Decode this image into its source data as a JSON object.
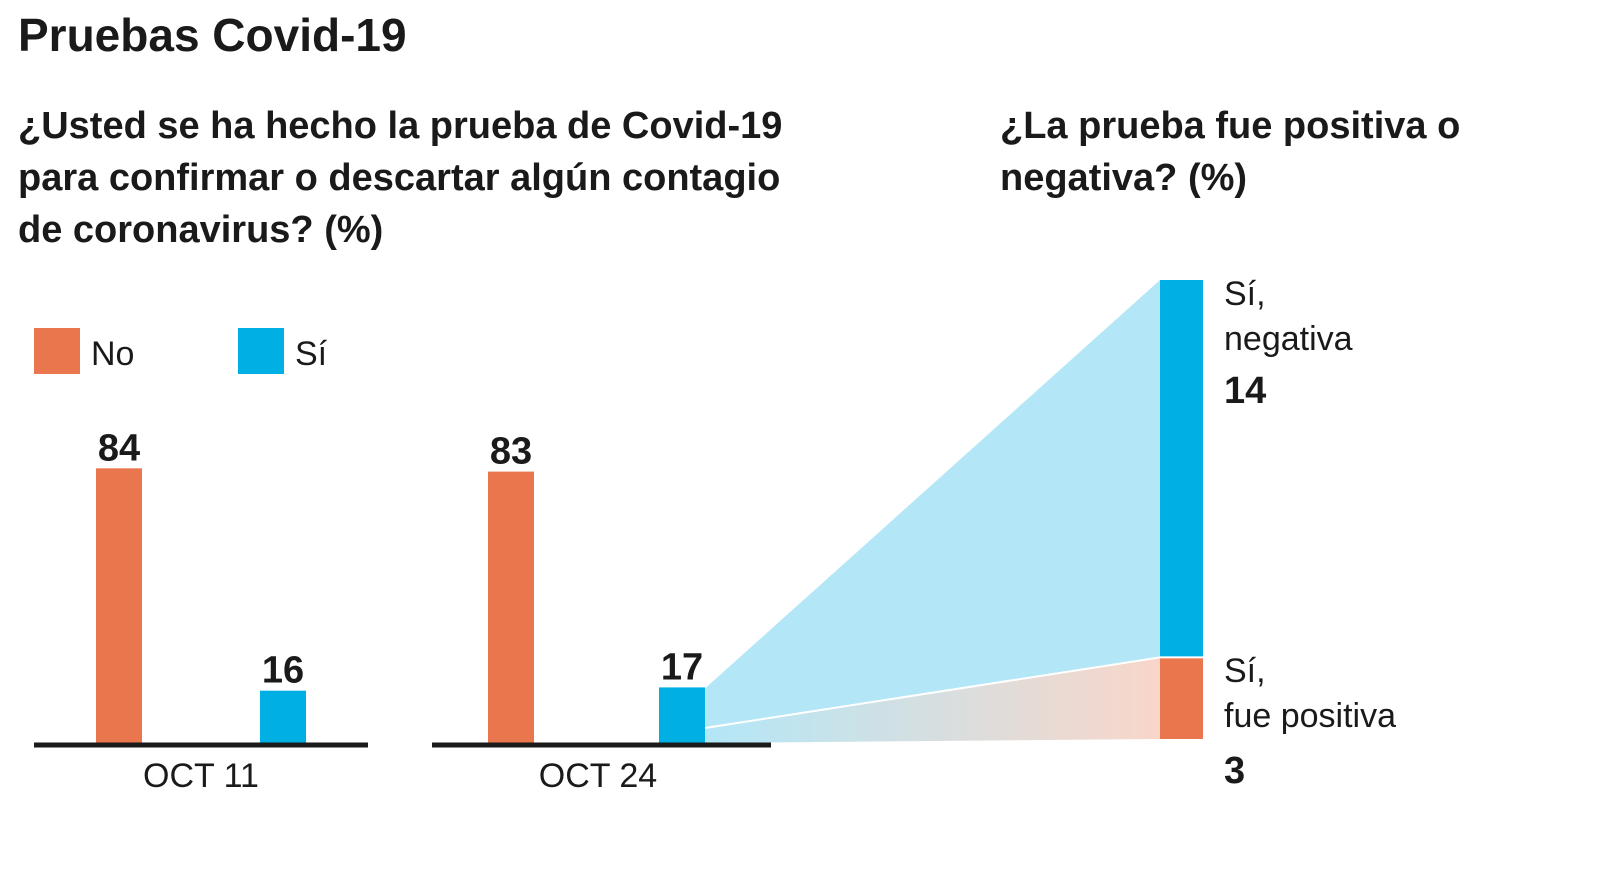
{
  "header": {
    "title": "Pruebas Covid-19",
    "question_left": "¿Usted se ha hecho la prueba de Covid-19 para confirmar o descartar algún contagio de coronavirus? (%)",
    "question_right": "¿La prueba fue positiva o negativa? (%)"
  },
  "colors": {
    "no": "#ea764e",
    "si": "#00b0e4",
    "wedge_light_blue": "#b3e7f7",
    "wedge_light_orange": "#f9d6c9",
    "axis": "#1a1a1a"
  },
  "chart_data": [
    {
      "type": "bar",
      "categories": [
        "OCT 11",
        "OCT 24"
      ],
      "series": [
        {
          "name": "No",
          "values": [
            84,
            83
          ]
        },
        {
          "name": "Sí",
          "values": [
            16,
            17
          ]
        }
      ],
      "legend_position": "top-left",
      "grid": false
    },
    {
      "type": "bar",
      "stacked": true,
      "categories": [
        "Sí"
      ],
      "series": [
        {
          "name": "Sí, fue positiva",
          "values": [
            3
          ]
        },
        {
          "name": "Sí, negativa",
          "values": [
            14
          ]
        }
      ]
    }
  ],
  "breakdown_labels": {
    "negativa_line1": "Sí,",
    "negativa_line2": "negativa",
    "positiva_line1": "Sí,",
    "positiva_line2": "fue positiva"
  }
}
